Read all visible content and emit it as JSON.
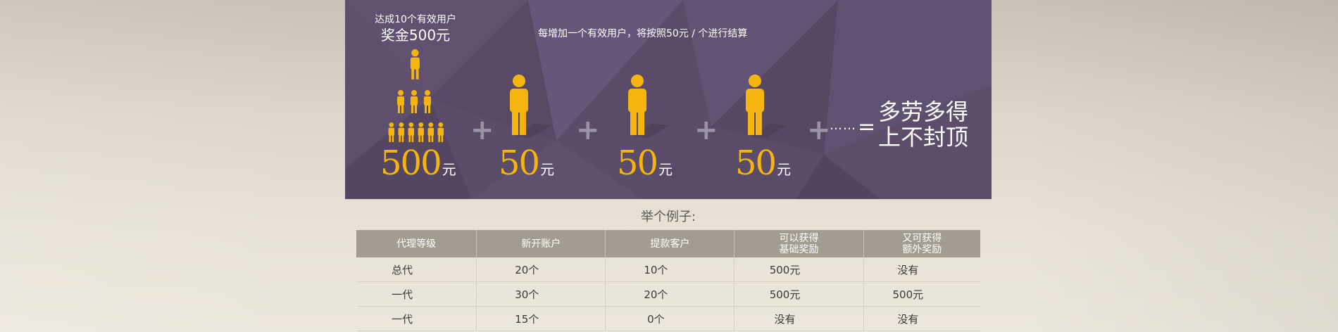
{
  "banner": {
    "cap_top": "达成10个有效用户",
    "cap_big": "奖金500元",
    "rule": "每增加一个有效用户，将按照50元 / 个进行结算",
    "amounts": [
      {
        "num": "500",
        "unit": "元"
      },
      {
        "num": "50",
        "unit": "元"
      },
      {
        "num": "50",
        "unit": "元"
      },
      {
        "num": "50",
        "unit": "元"
      }
    ],
    "plus": "+",
    "dots": "……",
    "equals": "=",
    "slogan_line1": "多劳多得",
    "slogan_line2": "上不封顶",
    "colors": {
      "bg": "#5b4c69",
      "accent": "#f6b40e"
    },
    "icons": [
      "person-group-pyramid-icon",
      "person-icon"
    ]
  },
  "example": {
    "title": "举个例子:",
    "headers": [
      {
        "l1": "代理等级",
        "l2": ""
      },
      {
        "l1": "新开账户",
        "l2": ""
      },
      {
        "l1": "提款客户",
        "l2": ""
      },
      {
        "l1": "可以获得",
        "l2": "基础奖励"
      },
      {
        "l1": "又可获得",
        "l2": "额外奖励"
      }
    ],
    "rows": [
      [
        "总代",
        "20个",
        "10个",
        "500元",
        "没有"
      ],
      [
        "一代",
        "30个",
        "20个",
        "500元",
        "500元"
      ],
      [
        "一代",
        "15个",
        "0个",
        "没有",
        "没有"
      ]
    ]
  }
}
